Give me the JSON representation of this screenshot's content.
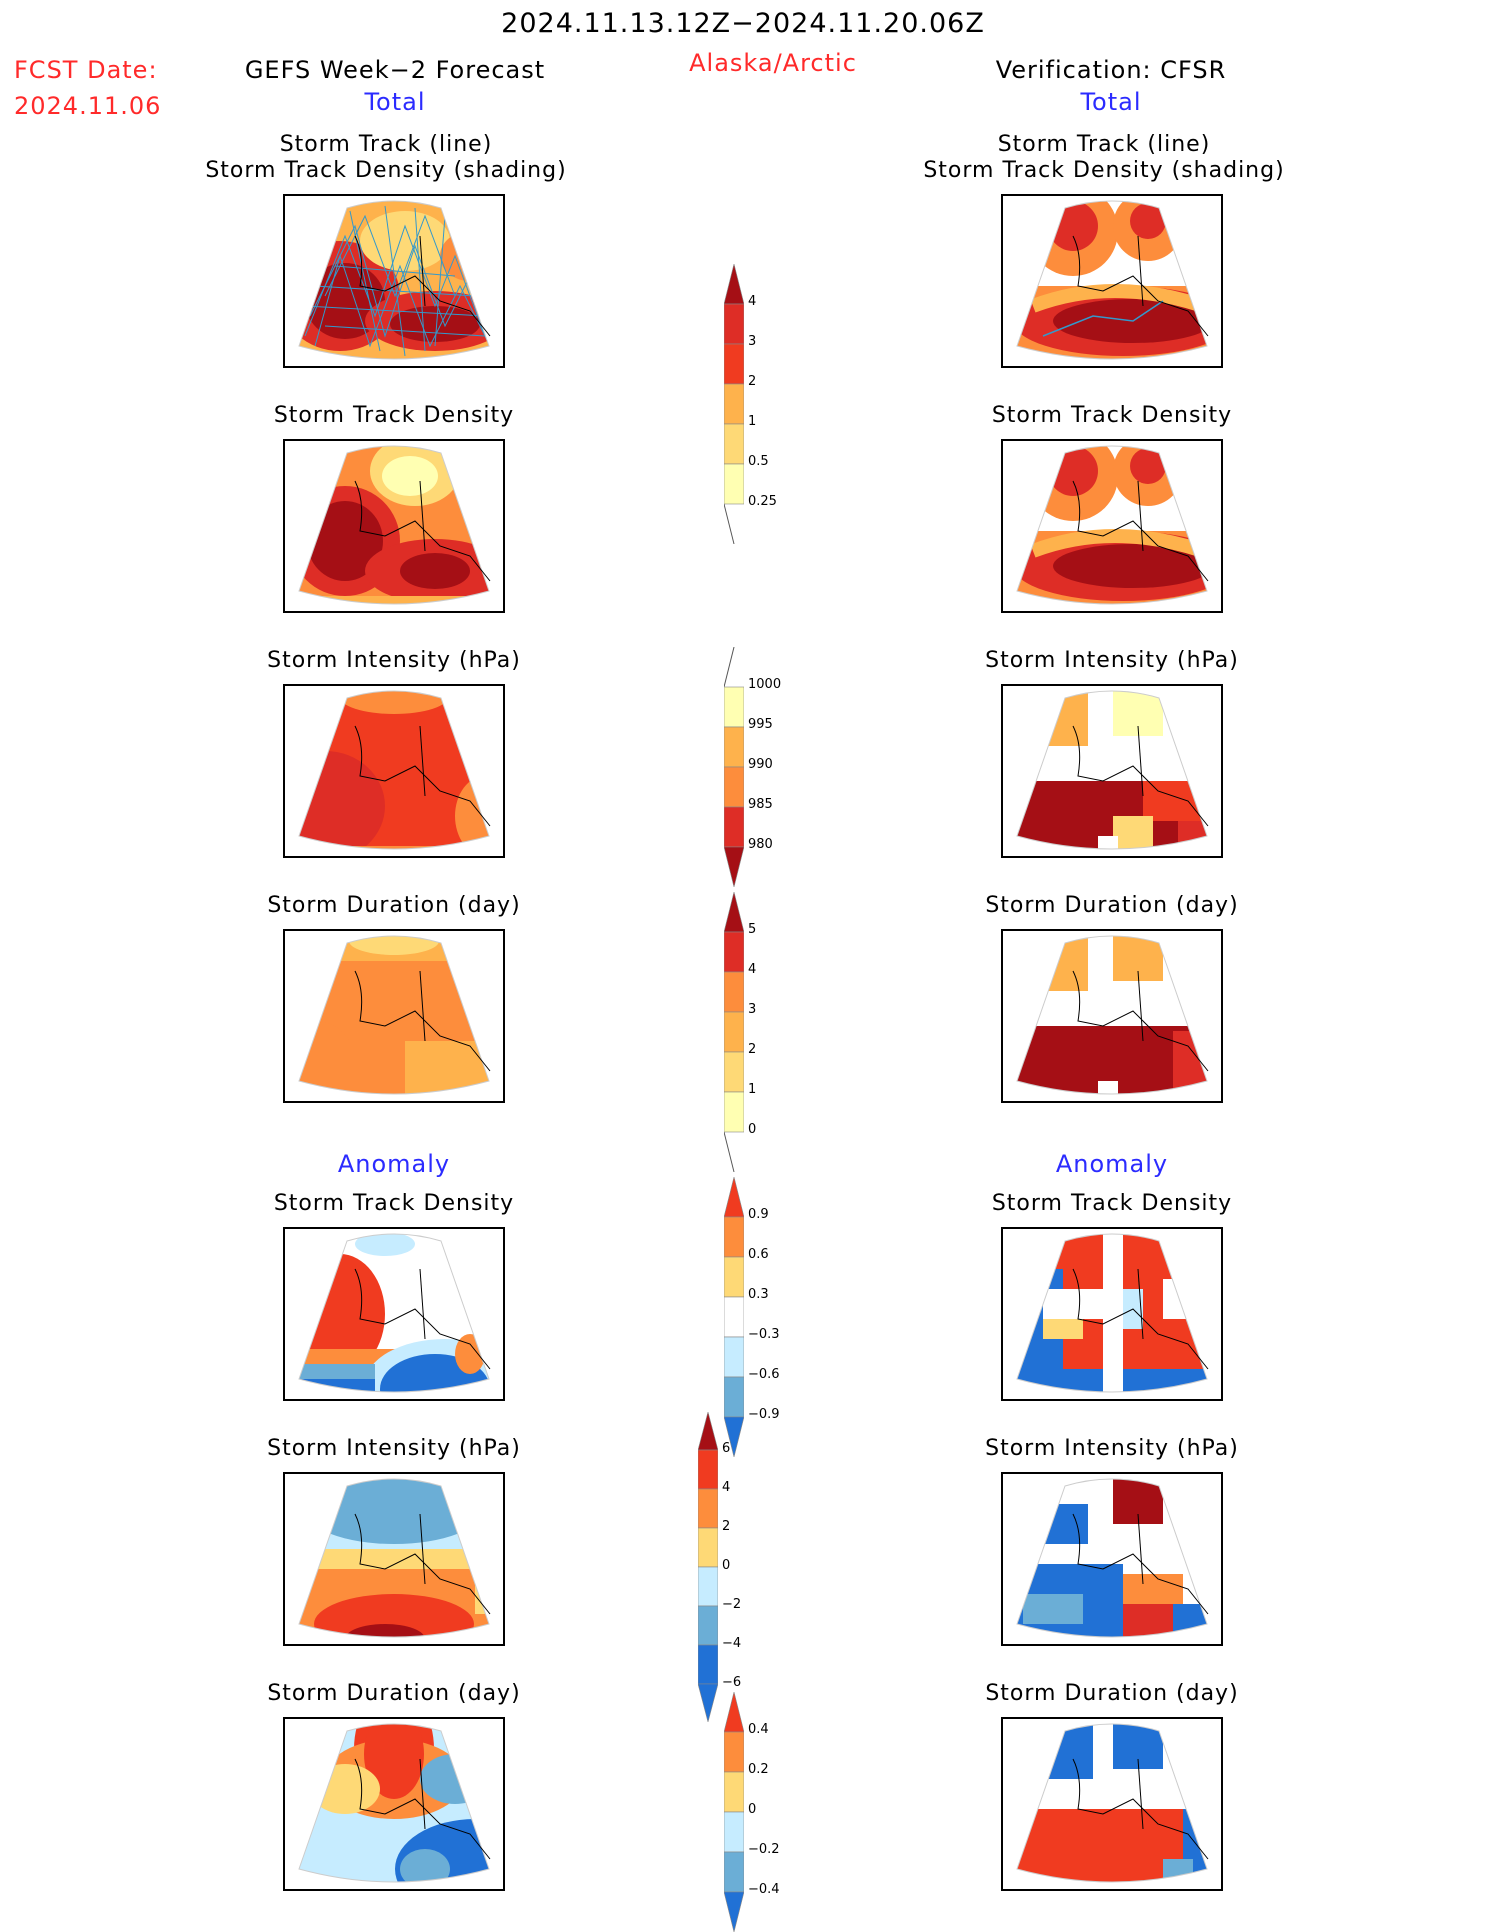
{
  "header": {
    "date_range": "2024.11.13.12Z−2024.11.20.06Z",
    "fcst_label": "FCST Date:",
    "fcst_date": "2024.11.06",
    "left_title": "GEFS Week−2 Forecast",
    "region": "Alaska/Arctic",
    "right_title": "Verification: CFSR"
  },
  "sections": {
    "total": "Total",
    "anomaly": "Anomaly"
  },
  "panel_titles": {
    "track_line": "Storm Track (line)",
    "track_shading": "Storm Track Density (shading)",
    "density": "Storm Track Density",
    "intensity": "Storm Intensity (hPa)",
    "duration": "Storm Duration (day)"
  },
  "colorbars": {
    "density_total": [
      "0.25",
      "0.5",
      "1",
      "2",
      "3",
      "4"
    ],
    "intensity_total": [
      "1000",
      "995",
      "990",
      "985",
      "980"
    ],
    "duration_total": [
      "0",
      "1",
      "2",
      "3",
      "4",
      "5"
    ],
    "density_anom": [
      "0.9",
      "0.6",
      "0.3",
      "−0.3",
      "−0.6",
      "−0.9"
    ],
    "intensity_anom": [
      "6",
      "4",
      "2",
      "0",
      "−2",
      "−4",
      "−6"
    ],
    "duration_anom": [
      "0.4",
      "0.2",
      "0",
      "−0.2",
      "−0.4"
    ]
  },
  "colors": {
    "dark_red": "#a50f15",
    "red": "#de2d26",
    "red_orange": "#f03b20",
    "orange": "#fd8d3c",
    "light_orange": "#feb24c",
    "yellow": "#fed976",
    "pale_yellow": "#ffffb2",
    "light_blue": "#c6ecff",
    "mid_blue": "#6baed6",
    "blue": "#2171d5",
    "track_line": "#3399cc"
  }
}
